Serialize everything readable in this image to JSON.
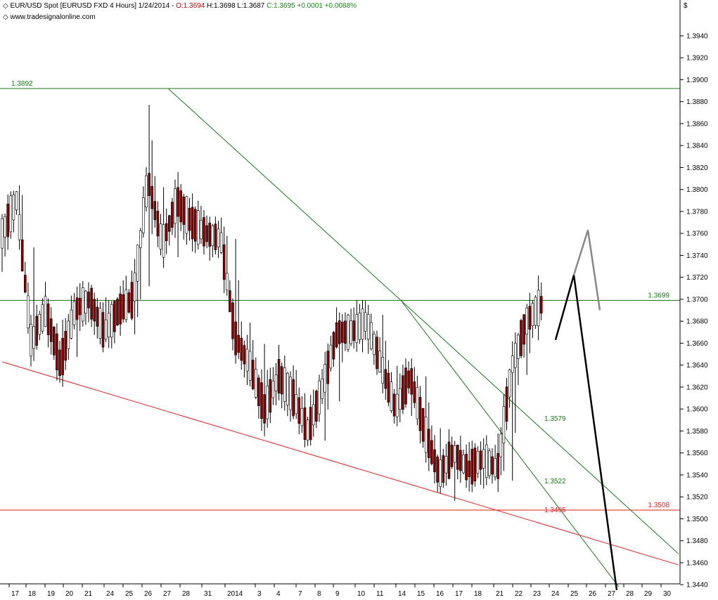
{
  "header": {
    "icon": "diamond-icon",
    "symbol": "EUR/USD Spot [EURUSD FXD  4 Hours] 1/24/2014 - ",
    "open": "O:1.3694",
    "high_low": " H:1.3698 L:1.3687 ",
    "close_change": "C:1.3695 +0.0001 +0.0088%",
    "source_icon": "diamond-icon",
    "source": "www.tradesignalonline.com",
    "currency": "$"
  },
  "colors": {
    "up_candle": "#ffffff",
    "down_candle": "#8b0000",
    "green_line": "#1a7a1a",
    "red_line": "#dd2222",
    "projection_black": "#000000",
    "projection_gray": "#888888"
  },
  "chart_data": {
    "type": "candlestick",
    "timeframe": "4 Hours",
    "y_range": [
      1.3435,
      1.3955
    ],
    "y_ticks": [
      "1.3940",
      "1.3920",
      "1.3900",
      "1.3880",
      "1.3860",
      "1.3840",
      "1.3820",
      "1.3800",
      "1.3780",
      "1.3760",
      "1.3740",
      "1.3720",
      "1.3700",
      "1.3680",
      "1.3660",
      "1.3640",
      "1.3620",
      "1.3600",
      "1.3580",
      "1.3560",
      "1.3540",
      "1.3520",
      "1.3500",
      "1.3480",
      "1.3460",
      "1.3440"
    ],
    "x_ticks": [
      "17",
      "18",
      "19",
      "20",
      "21",
      "24",
      "25",
      "26",
      "27",
      "28",
      "31",
      "2014",
      "3",
      "4",
      "7",
      "8",
      "9",
      "10",
      "11",
      "14",
      "15",
      "16",
      "17",
      "18",
      "21",
      "22",
      "23",
      "24",
      "25",
      "26",
      "27",
      "28",
      "29",
      "30"
    ],
    "horizontal_levels": [
      {
        "label": "1.3892",
        "value": 1.3892,
        "color": "green"
      },
      {
        "label": "1.3699",
        "value": 1.3699,
        "color": "green"
      },
      {
        "label": "1.3508",
        "value": 1.3508,
        "color": "red"
      }
    ],
    "trendline_labels": [
      {
        "label": "1.3579",
        "color": "green"
      },
      {
        "label": "1.3522",
        "color": "green"
      },
      {
        "label": "1.3495",
        "color": "red"
      }
    ],
    "anchors": [
      [
        1.3748,
        1.3776,
        1.3725,
        1.376
      ],
      [
        1.376,
        1.3812,
        1.374,
        1.379
      ],
      [
        1.379,
        1.3795,
        1.365,
        1.366
      ],
      [
        1.366,
        1.37,
        1.364,
        1.369
      ],
      [
        1.369,
        1.37,
        1.3625,
        1.364
      ],
      [
        1.364,
        1.37,
        1.363,
        1.369
      ],
      [
        1.369,
        1.3718,
        1.367,
        1.37
      ],
      [
        1.37,
        1.3712,
        1.366,
        1.367
      ],
      [
        1.367,
        1.37,
        1.366,
        1.369
      ],
      [
        1.369,
        1.3722,
        1.366,
        1.37
      ],
      [
        1.37,
        1.3892,
        1.369,
        1.381
      ],
      [
        1.381,
        1.3812,
        1.373,
        1.375
      ],
      [
        1.375,
        1.382,
        1.373,
        1.379
      ],
      [
        1.379,
        1.38,
        1.374,
        1.377
      ],
      [
        1.377,
        1.3778,
        1.3745,
        1.376
      ],
      [
        1.376,
        1.3776,
        1.374,
        1.3755
      ],
      [
        1.3755,
        1.376,
        1.364,
        1.3665
      ],
      [
        1.3665,
        1.368,
        1.362,
        1.364
      ],
      [
        1.364,
        1.366,
        1.3575,
        1.36
      ],
      [
        1.36,
        1.365,
        1.359,
        1.363
      ],
      [
        1.363,
        1.365,
        1.358,
        1.361
      ],
      [
        1.361,
        1.363,
        1.356,
        1.358
      ],
      [
        1.358,
        1.3635,
        1.3548,
        1.362
      ],
      [
        1.362,
        1.369,
        1.358,
        1.367
      ],
      [
        1.367,
        1.3688,
        1.365,
        1.367
      ],
      [
        1.367,
        1.37,
        1.364,
        1.368
      ],
      [
        1.368,
        1.37,
        1.362,
        1.364
      ],
      [
        1.364,
        1.365,
        1.358,
        1.36
      ],
      [
        1.36,
        1.365,
        1.3585,
        1.363
      ],
      [
        1.363,
        1.364,
        1.357,
        1.358
      ],
      [
        1.358,
        1.359,
        1.352,
        1.354
      ],
      [
        1.354,
        1.357,
        1.351,
        1.356
      ],
      [
        1.356,
        1.3573,
        1.3525,
        1.3545
      ],
      [
        1.3545,
        1.357,
        1.3525,
        1.3555
      ],
      [
        1.3555,
        1.358,
        1.3535,
        1.3545
      ],
      [
        1.3545,
        1.365,
        1.353,
        1.364
      ],
      [
        1.364,
        1.369,
        1.363,
        1.368
      ],
      [
        1.368,
        1.3698,
        1.367,
        1.3695
      ]
    ],
    "projections": [
      {
        "color": "black",
        "points": [
          [
            "Jan 24",
            1.3663
          ],
          [
            "Jan 25",
            1.3722
          ],
          [
            "Jan 28",
            1.3435
          ]
        ]
      },
      {
        "color": "gray",
        "points": [
          [
            "Jan 25",
            1.3722
          ],
          [
            "Jan 26",
            1.3763
          ],
          [
            "Jan 27",
            1.369
          ]
        ]
      }
    ]
  }
}
